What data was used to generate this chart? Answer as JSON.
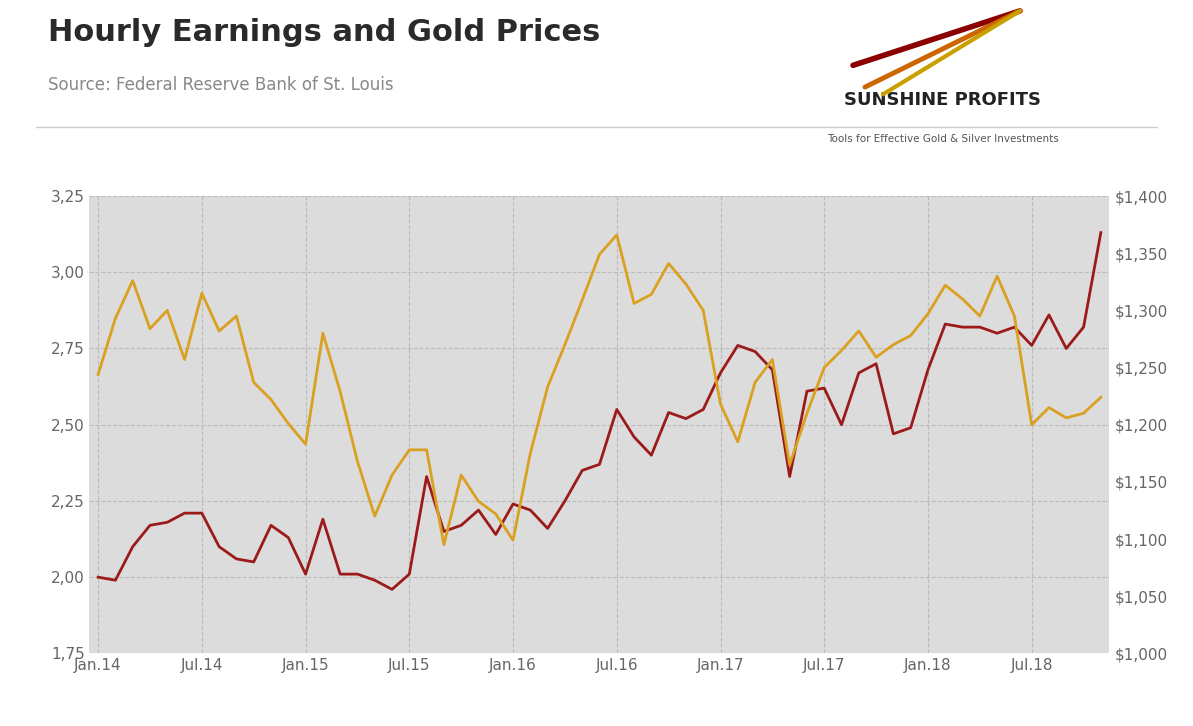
{
  "title": "Hourly Earnings and Gold Prices",
  "source": "Source: Federal Reserve Bank of St. Louis",
  "plot_bg_color": "#dcdcdc",
  "outer_bg_color": "#ffffff",
  "red_color": "#9B1B1B",
  "gold_color": "#DAA020",
  "left_ylim": [
    1.75,
    3.25
  ],
  "right_ylim": [
    1000,
    1400
  ],
  "left_yticks": [
    1.75,
    2.0,
    2.25,
    2.5,
    2.75,
    3.0,
    3.25
  ],
  "right_yticks": [
    1000,
    1050,
    1100,
    1150,
    1200,
    1250,
    1300,
    1350,
    1400
  ],
  "dates_labels": [
    "Jan.14",
    "Jul.14",
    "Jan.15",
    "Jul.15",
    "Jan.16",
    "Jul.16",
    "Jan.17",
    "Jul.17",
    "Jan.18",
    "Jul.18"
  ],
  "dates_x": [
    0,
    6,
    12,
    18,
    24,
    30,
    36,
    42,
    48,
    54
  ],
  "red_x": [
    0,
    1,
    2,
    3,
    4,
    5,
    6,
    7,
    8,
    9,
    10,
    11,
    12,
    13,
    14,
    15,
    16,
    17,
    18,
    19,
    20,
    21,
    22,
    23,
    24,
    25,
    26,
    27,
    28,
    29,
    30,
    31,
    32,
    33,
    34,
    35,
    36,
    37,
    38,
    39,
    40,
    41,
    42,
    43,
    44,
    45,
    46,
    47,
    48,
    49,
    50,
    51,
    52,
    53,
    54,
    55,
    56,
    57,
    58
  ],
  "red_y": [
    2.0,
    1.99,
    2.1,
    2.17,
    2.18,
    2.21,
    2.21,
    2.1,
    2.06,
    2.05,
    2.17,
    2.13,
    2.01,
    2.19,
    2.01,
    2.01,
    1.99,
    1.96,
    2.01,
    2.33,
    2.15,
    2.17,
    2.22,
    2.14,
    2.24,
    2.22,
    2.16,
    2.25,
    2.35,
    2.37,
    2.55,
    2.46,
    2.4,
    2.54,
    2.52,
    2.55,
    2.67,
    2.76,
    2.74,
    2.68,
    2.33,
    2.61,
    2.62,
    2.5,
    2.67,
    2.7,
    2.47,
    2.49,
    2.68,
    2.83,
    2.82,
    2.82,
    2.8,
    2.82,
    2.76,
    2.86,
    2.75,
    2.82,
    3.13
  ],
  "gold_x": [
    0,
    1,
    2,
    3,
    4,
    5,
    6,
    7,
    8,
    9,
    10,
    11,
    12,
    13,
    14,
    15,
    16,
    17,
    18,
    19,
    20,
    21,
    22,
    23,
    24,
    25,
    26,
    27,
    28,
    29,
    30,
    31,
    32,
    33,
    34,
    35,
    36,
    37,
    38,
    39,
    40,
    41,
    42,
    43,
    44,
    45,
    46,
    47,
    48,
    49,
    50,
    51,
    52,
    53,
    54,
    55,
    56,
    57,
    58
  ],
  "gold_y": [
    1244,
    1293,
    1326,
    1284,
    1300,
    1257,
    1315,
    1282,
    1295,
    1237,
    1222,
    1201,
    1183,
    1280,
    1229,
    1168,
    1120,
    1156,
    1178,
    1178,
    1095,
    1156,
    1133,
    1122,
    1099,
    1175,
    1233,
    1270,
    1309,
    1349,
    1366,
    1306,
    1314,
    1341,
    1323,
    1300,
    1218,
    1185,
    1237,
    1257,
    1165,
    1210,
    1250,
    1265,
    1282,
    1259,
    1270,
    1278,
    1297,
    1322,
    1310,
    1295,
    1330,
    1295,
    1200,
    1215,
    1206,
    1210,
    1224
  ],
  "title_fontsize": 22,
  "source_fontsize": 12,
  "tick_fontsize": 11,
  "tick_color": "#666666",
  "grid_color": "#bbbbbb",
  "sunshine_text": "SUNSHINE PROFITS",
  "sunshine_sub": "Tools for Effective Gold & Silver Investments",
  "sunshine_color": "#222222",
  "sunshine_sub_color": "#555555"
}
